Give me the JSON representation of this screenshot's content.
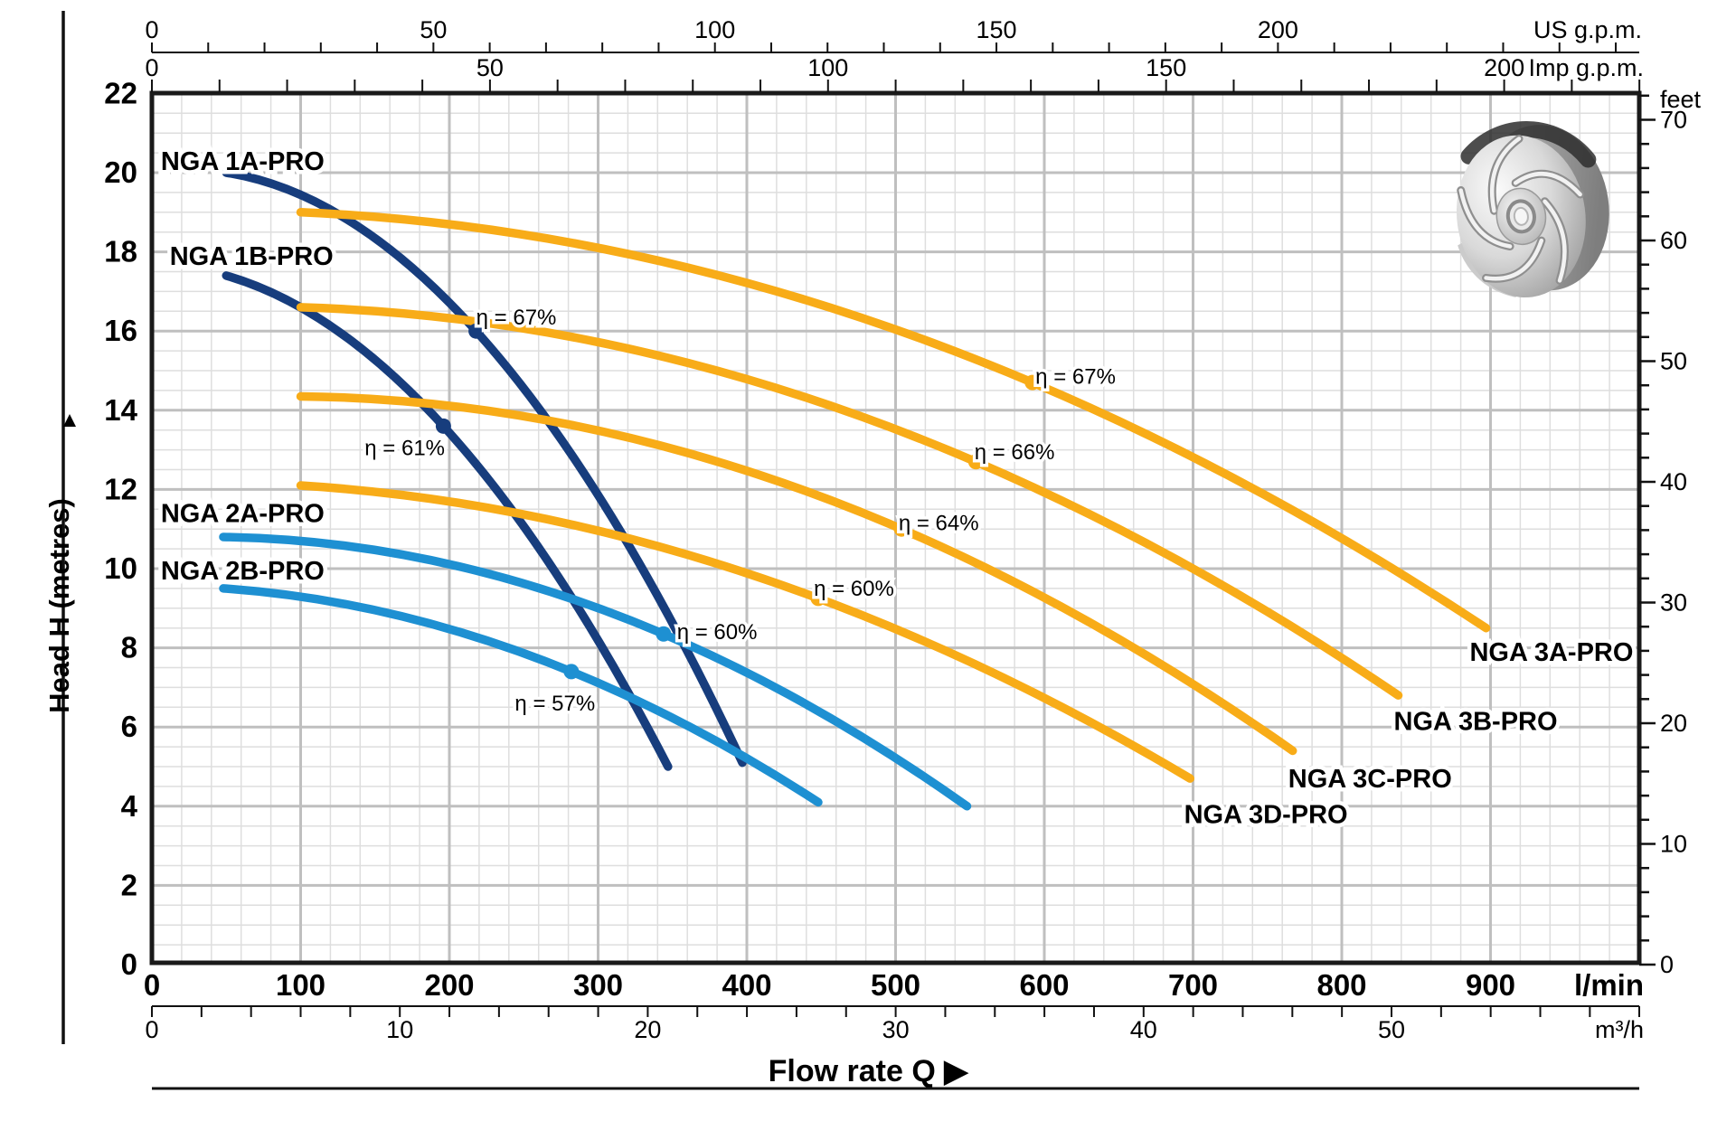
{
  "chart_data": {
    "type": "line",
    "xlabel": "Flow rate  Q",
    "ylabel": "Head H (metres)",
    "arrow_up": "▲",
    "arrow_right": "▶",
    "grid": true,
    "axes": {
      "flow_lmin": {
        "unit": "l/min",
        "ticks": [
          0,
          100,
          200,
          300,
          400,
          500,
          600,
          700,
          800,
          900
        ],
        "range": [
          0,
          1000
        ]
      },
      "flow_m3h": {
        "unit": "m³/h",
        "ticks": [
          0,
          10,
          20,
          30,
          40,
          50
        ],
        "range": [
          0,
          60
        ]
      },
      "flow_usgpm": {
        "unit": "US g.p.m.",
        "ticks": [
          0,
          50,
          100,
          150,
          200
        ],
        "range": [
          0,
          264
        ]
      },
      "flow_impgpm": {
        "unit": "Imp g.p.m.",
        "ticks": [
          0,
          50,
          100,
          150,
          200
        ],
        "range": [
          0,
          220
        ]
      },
      "head_m": {
        "unit": "metres",
        "ticks": [
          22,
          20,
          18,
          16,
          14,
          12,
          10,
          8,
          6,
          4,
          2,
          0
        ],
        "range": [
          0,
          22
        ]
      },
      "head_feet": {
        "unit": "feet",
        "ticks": [
          70,
          60,
          50,
          40,
          30,
          20,
          10,
          0
        ],
        "range": [
          0,
          72
        ]
      }
    },
    "colors": {
      "navy": "#173d7d",
      "lightblue": "#1e90d2",
      "orange": "#f8ac18",
      "grid_minor": "#dedede",
      "grid_major": "#bfbfbf",
      "border": "#1a1a1a"
    },
    "series": [
      {
        "name": "NGA 1A-PRO",
        "color": "#173d7d",
        "points": [
          [
            50,
            20.0
          ],
          [
            218,
            16.0
          ],
          [
            397,
            5.1
          ]
        ],
        "efficiency": {
          "text": "η = 67%",
          "value": 67,
          "at": [
            218,
            16.0
          ],
          "label_at": [
            245,
            16.35
          ]
        },
        "label_at": [
          61,
          20.3
        ]
      },
      {
        "name": "NGA 1B-PRO",
        "color": "#173d7d",
        "points": [
          [
            50,
            17.4
          ],
          [
            196,
            13.6
          ],
          [
            347,
            5.0
          ]
        ],
        "efficiency": {
          "text": "η = 61%",
          "value": 61,
          "at": [
            196,
            13.6
          ],
          "label_at": [
            170,
            13.05
          ]
        },
        "label_at": [
          67,
          17.9
        ]
      },
      {
        "name": "NGA 2A-PRO",
        "color": "#1e90d2",
        "points": [
          [
            48,
            10.8
          ],
          [
            344,
            8.35
          ],
          [
            548,
            4.0
          ]
        ],
        "efficiency": {
          "text": "η = 60%",
          "value": 60,
          "at": [
            344,
            8.35
          ],
          "label_at": [
            380,
            8.4
          ]
        },
        "label_at": [
          61,
          11.4
        ]
      },
      {
        "name": "NGA 2B-PRO",
        "color": "#1e90d2",
        "points": [
          [
            48,
            9.5
          ],
          [
            282,
            7.4
          ],
          [
            448,
            4.1
          ]
        ],
        "efficiency": {
          "text": "η = 57%",
          "value": 57,
          "at": [
            282,
            7.4
          ],
          "label_at": [
            271,
            6.6
          ]
        },
        "label_at": [
          61,
          9.95
        ]
      },
      {
        "name": "NGA 3A-PRO",
        "color": "#f8ac18",
        "points": [
          [
            100,
            19.0
          ],
          [
            592,
            14.7
          ],
          [
            897,
            8.5
          ]
        ],
        "efficiency": {
          "text": "η = 67%",
          "value": 67,
          "at": [
            592,
            14.7
          ],
          "label_at": [
            621,
            14.85
          ]
        },
        "label_at": [
          941,
          7.9
        ]
      },
      {
        "name": "NGA 3B-PRO",
        "color": "#f8ac18",
        "points": [
          [
            100,
            16.6
          ],
          [
            554,
            12.7
          ],
          [
            838,
            6.8
          ]
        ],
        "efficiency": {
          "text": "η = 66%",
          "value": 66,
          "at": [
            554,
            12.7
          ],
          "label_at": [
            580,
            12.95
          ]
        },
        "label_at": [
          890,
          6.15
        ]
      },
      {
        "name": "NGA 3C-PRO",
        "color": "#f8ac18",
        "points": [
          [
            100,
            14.35
          ],
          [
            504,
            11.0
          ],
          [
            767,
            5.4
          ]
        ],
        "efficiency": {
          "text": "η = 64%",
          "value": 64,
          "at": [
            504,
            11.0
          ],
          "label_at": [
            529,
            11.15
          ]
        },
        "label_at": [
          819,
          4.7
        ]
      },
      {
        "name": "NGA 3D-PRO",
        "color": "#f8ac18",
        "points": [
          [
            100,
            12.1
          ],
          [
            448,
            9.25
          ],
          [
            698,
            4.7
          ]
        ],
        "efficiency": {
          "text": "η = 60%",
          "value": 60,
          "at": [
            448,
            9.25
          ],
          "label_at": [
            472,
            9.5
          ]
        },
        "label_at": [
          749,
          3.8
        ]
      }
    ],
    "impeller": {
      "alt": "metallic pump impeller"
    }
  }
}
